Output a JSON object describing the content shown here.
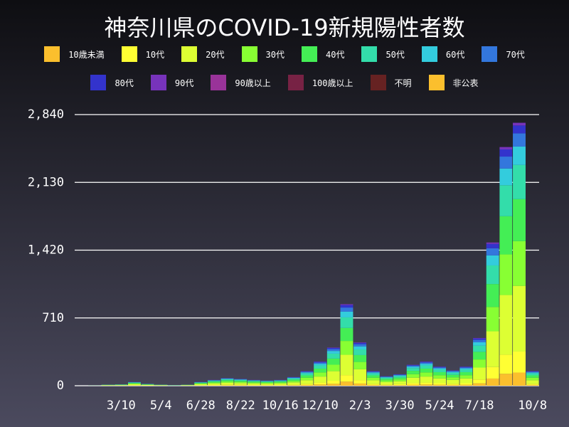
{
  "chart_data": {
    "type": "stacked_bar",
    "title": "神奈川県のCOVID-19新規陽性者数",
    "categories": [
      null,
      null,
      null,
      "3/10",
      null,
      null,
      "5/4",
      null,
      null,
      "6/28",
      null,
      null,
      "8/22",
      null,
      null,
      "10/16",
      null,
      null,
      "12/10",
      null,
      null,
      "2/3",
      null,
      null,
      "3/30",
      null,
      null,
      "5/24",
      null,
      null,
      "7/18",
      null,
      null,
      null,
      "10/8"
    ],
    "ylim": [
      0,
      2840
    ],
    "yticks": [
      0,
      710,
      {
        "value": 1420,
        "label": "1,420"
      },
      {
        "value": 2130,
        "label": "2,130"
      },
      {
        "value": 2840,
        "label": "2,840"
      }
    ],
    "grid": true,
    "series": [
      {
        "name": "10歳未満",
        "color": "#fbbf2d",
        "values": [
          0,
          0,
          1,
          1,
          2,
          1,
          1,
          0,
          1,
          2,
          3,
          4,
          4,
          3,
          3,
          3,
          5,
          8,
          13,
          20,
          43,
          23,
          8,
          5,
          6,
          11,
          13,
          10,
          8,
          10,
          25,
          75,
          125,
          138,
          8
        ]
      },
      {
        "name": "10代",
        "color": "#ffff33",
        "values": [
          0,
          0,
          1,
          1,
          3,
          2,
          1,
          0,
          1,
          3,
          5,
          6,
          6,
          5,
          4,
          5,
          7,
          12,
          20,
          32,
          68,
          36,
          12,
          8,
          10,
          18,
          20,
          16,
          13,
          16,
          40,
          120,
          200,
          220,
          12
        ]
      },
      {
        "name": "20代",
        "color": "#ddff33",
        "values": [
          0,
          1,
          3,
          4,
          10,
          5,
          3,
          1,
          3,
          10,
          15,
          20,
          18,
          15,
          14,
          15,
          23,
          38,
          63,
          100,
          213,
          113,
          38,
          25,
          30,
          55,
          63,
          50,
          40,
          50,
          125,
          375,
          625,
          688,
          38
        ]
      },
      {
        "name": "30代",
        "color": "#88ff33",
        "values": [
          0,
          0,
          2,
          3,
          7,
          3,
          2,
          1,
          2,
          7,
          10,
          14,
          12,
          10,
          9,
          10,
          15,
          26,
          43,
          68,
          145,
          77,
          26,
          17,
          20,
          37,
          43,
          34,
          27,
          34,
          85,
          255,
          425,
          468,
          26
        ]
      },
      {
        "name": "40代",
        "color": "#44ee55",
        "values": [
          0,
          0,
          2,
          2,
          6,
          3,
          2,
          1,
          2,
          6,
          10,
          13,
          11,
          10,
          9,
          10,
          14,
          24,
          40,
          64,
          136,
          72,
          24,
          16,
          19,
          35,
          40,
          32,
          26,
          32,
          80,
          240,
          400,
          440,
          24
        ]
      },
      {
        "name": "50代",
        "color": "#33ddaa",
        "values": [
          0,
          0,
          1,
          2,
          5,
          3,
          1,
          1,
          1,
          5,
          8,
          10,
          9,
          8,
          7,
          8,
          12,
          20,
          33,
          52,
          111,
          59,
          20,
          13,
          16,
          29,
          33,
          26,
          21,
          26,
          65,
          195,
          325,
          358,
          20
        ]
      },
      {
        "name": "60代",
        "color": "#33ccdd",
        "values": [
          0,
          1,
          1,
          1,
          3,
          1,
          1,
          1,
          0,
          3,
          4,
          6,
          5,
          4,
          4,
          4,
          6,
          11,
          18,
          28,
          60,
          32,
          11,
          7,
          8,
          15,
          18,
          14,
          11,
          14,
          35,
          105,
          175,
          193,
          11
        ]
      },
      {
        "name": "70代",
        "color": "#3377dd",
        "values": [
          0,
          0,
          0,
          1,
          2,
          1,
          0,
          0,
          0,
          2,
          3,
          4,
          4,
          3,
          3,
          3,
          5,
          8,
          13,
          20,
          43,
          23,
          8,
          5,
          6,
          11,
          13,
          10,
          8,
          10,
          25,
          75,
          125,
          138,
          8
        ]
      },
      {
        "name": "80代",
        "color": "#3333cc",
        "values": [
          0,
          0,
          0,
          0,
          1,
          1,
          0,
          0,
          0,
          1,
          2,
          2,
          2,
          2,
          1,
          2,
          3,
          5,
          8,
          12,
          26,
          14,
          5,
          3,
          4,
          7,
          8,
          6,
          5,
          6,
          15,
          45,
          75,
          83,
          5
        ]
      },
      {
        "name": "90代",
        "color": "#7733bb",
        "values": [
          0,
          0,
          0,
          0,
          1,
          0,
          0,
          0,
          0,
          1,
          1,
          1,
          1,
          1,
          1,
          1,
          1,
          2,
          3,
          4,
          9,
          5,
          2,
          1,
          1,
          2,
          3,
          2,
          2,
          2,
          5,
          15,
          25,
          28,
          2
        ]
      },
      {
        "name": "90歳以上",
        "color": "#993399",
        "values": [
          0,
          0,
          0,
          0,
          0,
          0,
          0,
          0,
          0,
          0,
          0,
          0,
          0,
          0,
          0,
          0,
          0,
          0,
          0,
          0,
          0,
          0,
          0,
          0,
          0,
          0,
          0,
          0,
          0,
          0,
          0,
          0,
          0,
          0,
          0
        ]
      },
      {
        "name": "100歳以上",
        "color": "#772244",
        "values": [
          0,
          0,
          0,
          0,
          0,
          0,
          0,
          0,
          0,
          0,
          0,
          0,
          0,
          0,
          0,
          0,
          0,
          0,
          0,
          0,
          0,
          0,
          0,
          0,
          0,
          0,
          0,
          0,
          0,
          0,
          0,
          0,
          0,
          0,
          0
        ]
      },
      {
        "name": "不明",
        "color": "#662222",
        "values": [
          0,
          0,
          0,
          0,
          0,
          0,
          0,
          0,
          0,
          0,
          0,
          0,
          0,
          0,
          0,
          0,
          0,
          0,
          0,
          0,
          0,
          0,
          0,
          0,
          0,
          0,
          0,
          0,
          0,
          0,
          0,
          0,
          0,
          0,
          0
        ]
      },
      {
        "name": "非公表",
        "color": "#fbbf2d",
        "values": [
          0,
          0,
          0,
          0,
          0,
          0,
          0,
          0,
          0,
          0,
          0,
          0,
          0,
          0,
          0,
          0,
          0,
          0,
          0,
          0,
          0,
          0,
          0,
          0,
          0,
          0,
          0,
          0,
          0,
          0,
          0,
          0,
          0,
          0,
          0
        ]
      }
    ]
  }
}
